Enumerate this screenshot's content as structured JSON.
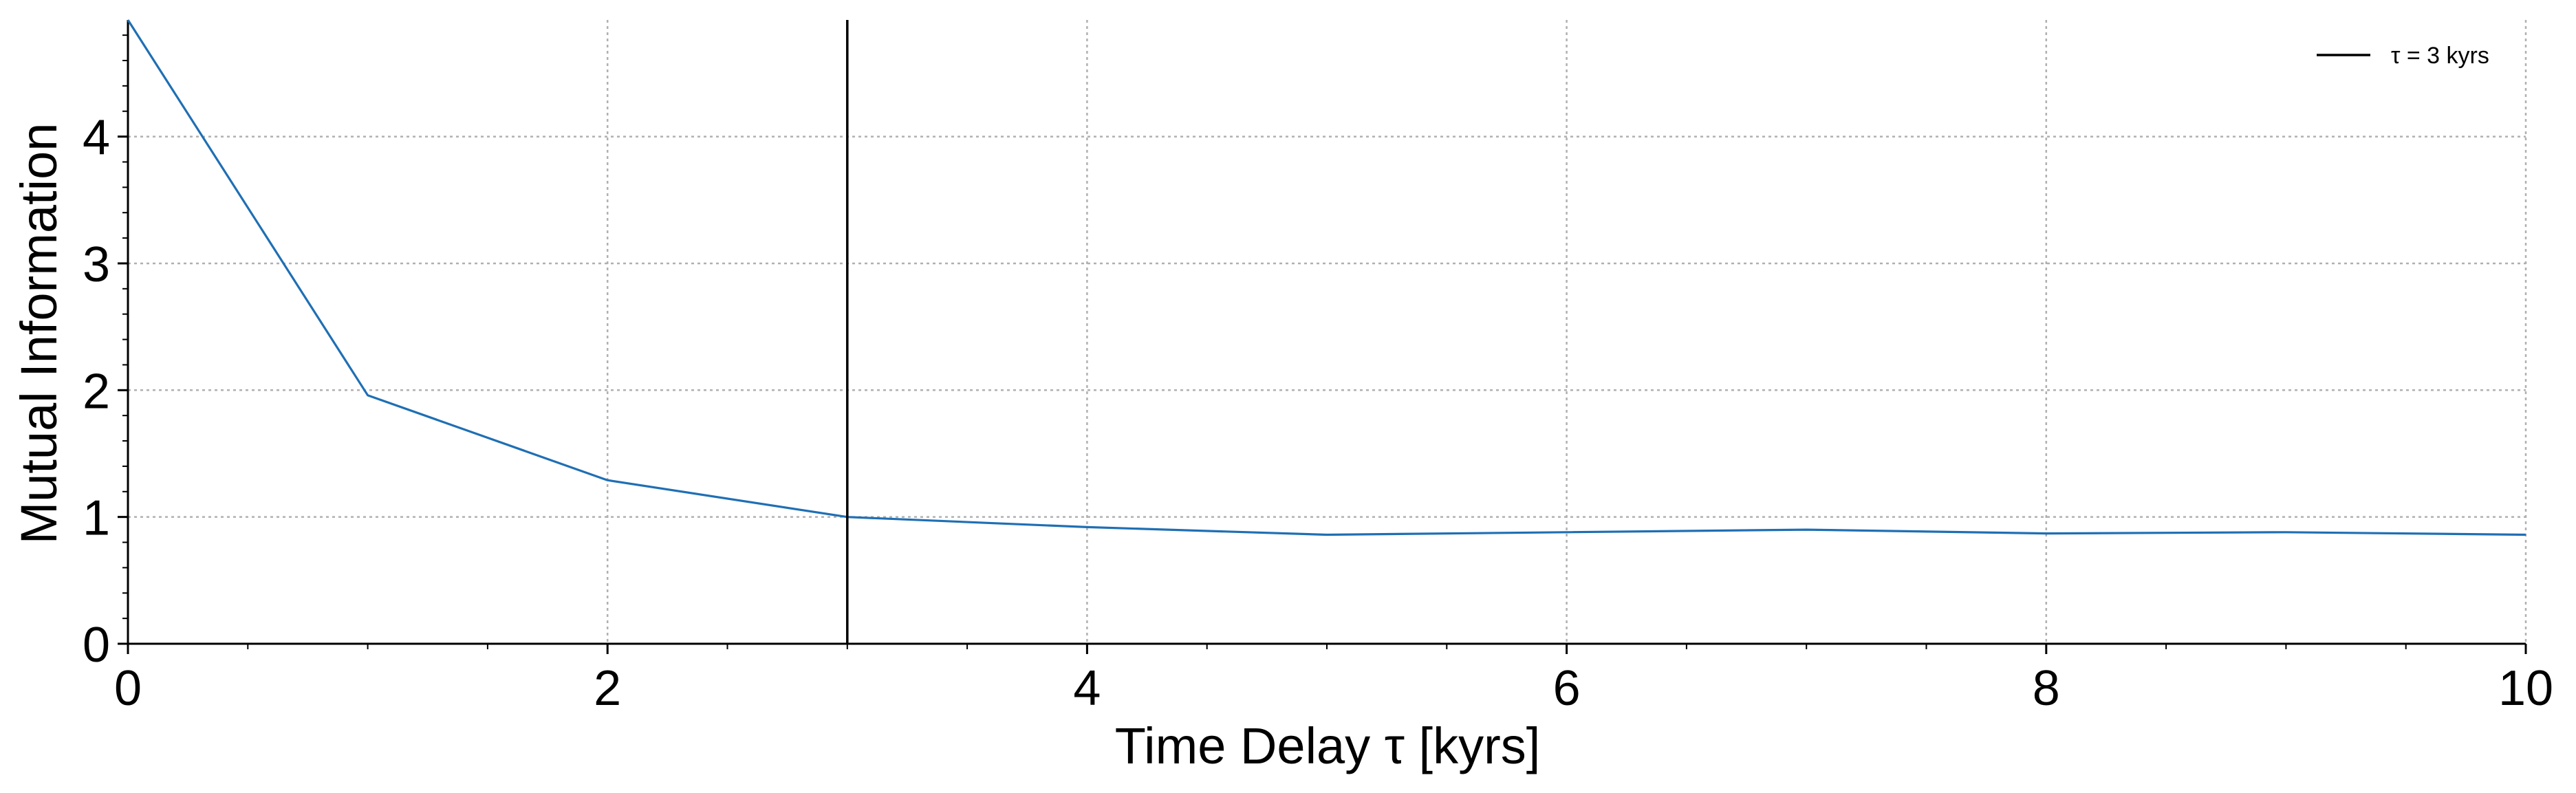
{
  "chart_data": {
    "type": "line",
    "xlabel": "Time Delay τ [kyrs]",
    "ylabel": "Mutual Information",
    "xlim": [
      0,
      10
    ],
    "ylim": [
      0,
      4.92
    ],
    "x_ticks": [
      0,
      2,
      4,
      6,
      8,
      10
    ],
    "y_ticks": [
      0,
      1,
      2,
      3,
      4
    ],
    "x_minor_step": 0.5,
    "y_minor_step": 0.2,
    "grid": true,
    "legend_position": "top-right",
    "series": [
      {
        "x": [
          0,
          1,
          2,
          3,
          4,
          5,
          6,
          7,
          8,
          9,
          10
        ],
        "y": [
          4.92,
          1.96,
          1.29,
          1.0,
          0.92,
          0.86,
          0.88,
          0.9,
          0.87,
          0.88,
          0.86
        ],
        "color": "#1f6fb4"
      }
    ],
    "vline": {
      "x": 3,
      "label": "τ = 3 kyrs",
      "color": "#000000"
    }
  }
}
